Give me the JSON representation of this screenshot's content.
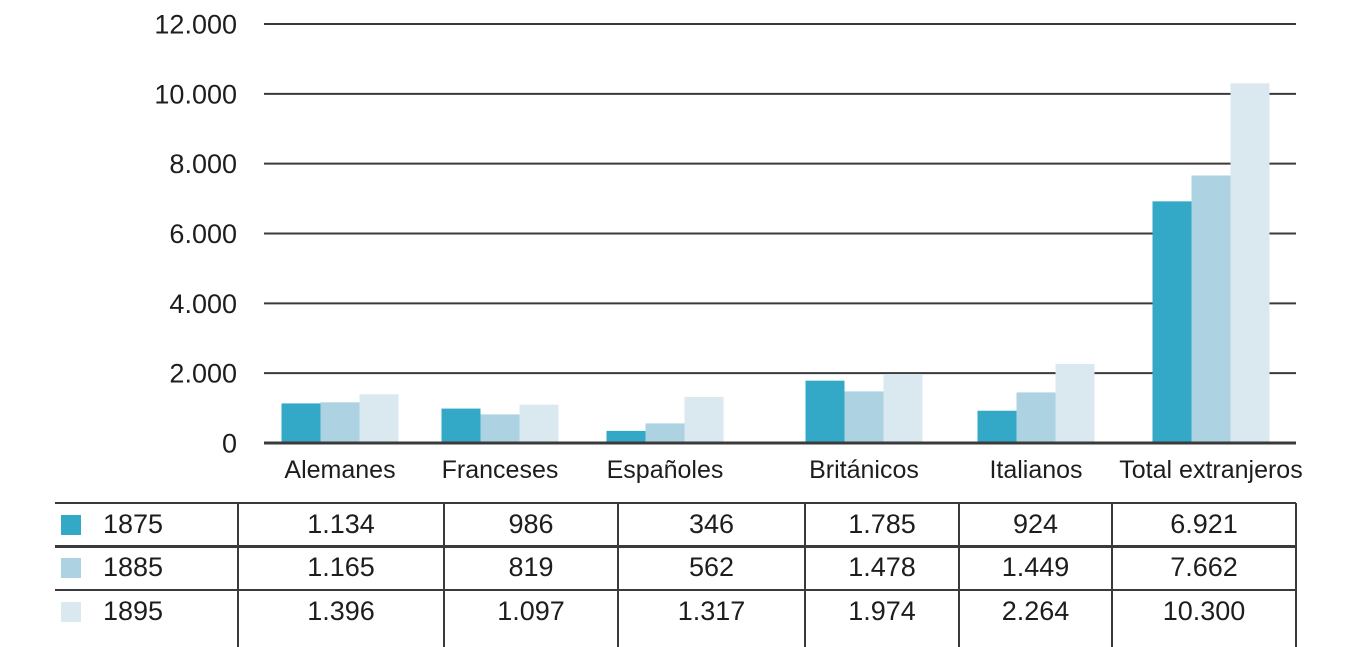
{
  "figure": {
    "background": "#ffffff",
    "text_color": "#1d1d1d",
    "line_color": "#3a3a3a"
  },
  "chart_data": {
    "type": "bar",
    "title": "",
    "xlabel": "",
    "ylabel": "",
    "categories": [
      "Alemanes",
      "Franceses",
      "Españoles",
      "Británicos",
      "Italianos",
      "Total extranjeros"
    ],
    "series": [
      {
        "name": "1875",
        "color": "#34a9c7",
        "values": [
          1134,
          986,
          346,
          1785,
          924,
          6921
        ],
        "labels": [
          "1.134",
          "986",
          "346",
          "1.785",
          "924",
          "6.921"
        ]
      },
      {
        "name": "1885",
        "color": "#add3e2",
        "values": [
          1165,
          819,
          562,
          1478,
          1449,
          7662
        ],
        "labels": [
          "1.165",
          "819",
          "562",
          "1.478",
          "1.449",
          "7.662"
        ]
      },
      {
        "name": "1895",
        "color": "#dae8f0",
        "values": [
          1396,
          1097,
          1317,
          1974,
          2264,
          10300
        ],
        "labels": [
          "1.396",
          "1.097",
          "1.317",
          "1.974",
          "2.264",
          "10.300"
        ]
      }
    ],
    "ylim": [
      0,
      12000
    ],
    "y_ticks": [
      0,
      2000,
      4000,
      6000,
      8000,
      10000,
      12000
    ],
    "y_tick_labels": [
      "0",
      "2.000",
      "4.000",
      "6.000",
      "8.000",
      "10.000",
      "12.000"
    ],
    "grid": true,
    "legend_position": "table rows below chart"
  }
}
